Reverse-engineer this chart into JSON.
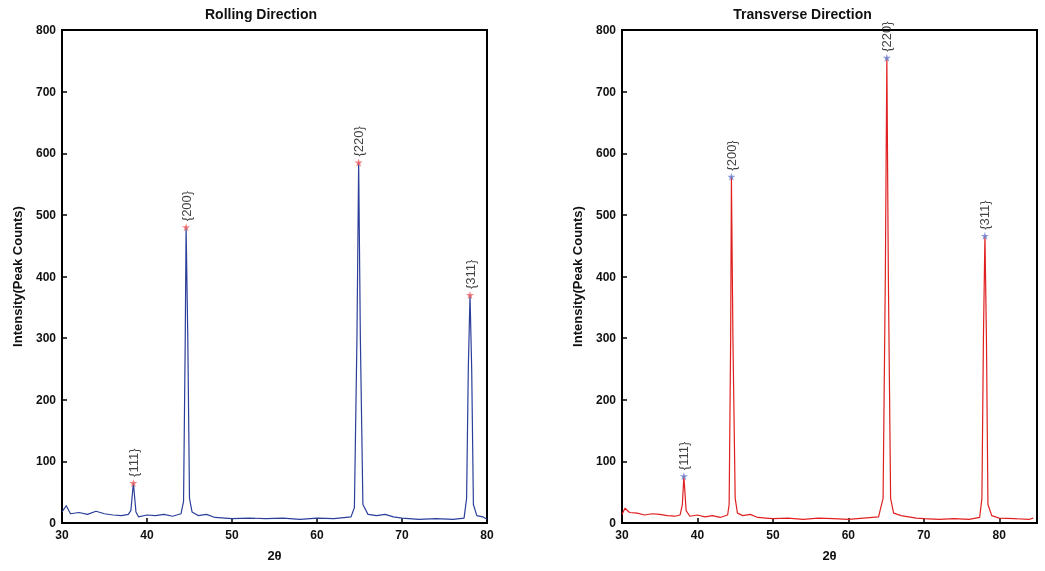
{
  "chart_data": [
    {
      "type": "line",
      "title": "Rolling Direction",
      "xlabel": "2θ",
      "ylabel": "Intensity(Peak Counts)",
      "xlim": [
        30,
        80
      ],
      "xticks": [
        30,
        40,
        50,
        60,
        70,
        80
      ],
      "ylim": [
        0,
        800
      ],
      "yticks": [
        0,
        100,
        200,
        300,
        400,
        500,
        600,
        700,
        800
      ],
      "grid": false,
      "series": [
        {
          "color": "#2b3f9a",
          "marker": "none",
          "x": [
            30,
            30.5,
            31,
            32,
            33,
            34,
            35,
            36,
            37,
            37.8,
            38.1,
            38.4,
            38.7,
            39,
            40,
            41,
            42,
            43,
            44,
            44.3,
            44.5,
            44.6,
            44.8,
            45,
            45.3,
            46,
            47,
            48,
            50,
            52,
            54,
            56,
            58,
            60,
            62,
            64,
            64.4,
            64.7,
            64.9,
            65.1,
            65.4,
            66,
            67,
            68,
            69,
            70,
            72,
            74,
            76,
            77.3,
            77.6,
            77.8,
            78,
            78.2,
            78.4,
            78.8,
            79.5,
            80
          ],
          "values": [
            18,
            28,
            15,
            17,
            14,
            19,
            15,
            13,
            12,
            14,
            20,
            65,
            18,
            10,
            13,
            12,
            14,
            11,
            15,
            35,
            300,
            480,
            300,
            40,
            18,
            12,
            14,
            9,
            7,
            8,
            7,
            8,
            6,
            8,
            7,
            10,
            25,
            300,
            585,
            300,
            30,
            14,
            12,
            14,
            10,
            8,
            6,
            7,
            6,
            8,
            40,
            250,
            370,
            250,
            30,
            12,
            10,
            6
          ]
        },
        {
          "type": "scatter",
          "color": "#f06060",
          "marker": "star",
          "x": [
            38.4,
            44.6,
            64.9,
            78
          ],
          "values": [
            65,
            480,
            585,
            370
          ]
        }
      ],
      "annotations": [
        {
          "text": "{111}",
          "x": 38.4,
          "y": 65
        },
        {
          "text": "{200}",
          "x": 44.6,
          "y": 480
        },
        {
          "text": "{220}",
          "x": 64.9,
          "y": 585
        },
        {
          "text": "{311}",
          "x": 78,
          "y": 370
        }
      ]
    },
    {
      "type": "line",
      "title": "Transverse Direction",
      "xlabel": "2θ",
      "ylabel": "Intensity(Peak Counts)",
      "xlim": [
        30,
        85
      ],
      "xticks": [
        30,
        40,
        50,
        60,
        70,
        80
      ],
      "ylim": [
        0,
        800
      ],
      "yticks": [
        0,
        100,
        200,
        300,
        400,
        500,
        600,
        700,
        800
      ],
      "grid": false,
      "series": [
        {
          "color": "#e02020",
          "marker": "none",
          "x": [
            30,
            30.4,
            31,
            32,
            33,
            34,
            35,
            36,
            37,
            37.7,
            38,
            38.2,
            38.5,
            39,
            40,
            41,
            42,
            43,
            44,
            44.2,
            44.4,
            44.5,
            44.7,
            45,
            45.3,
            46,
            47,
            48,
            50,
            52,
            54,
            56,
            58,
            60,
            62,
            64,
            64.6,
            64.9,
            65.1,
            65.3,
            65.6,
            66,
            67,
            68,
            69,
            70,
            72,
            74,
            76,
            77.4,
            77.7,
            77.9,
            78.1,
            78.3,
            78.5,
            79,
            80,
            82,
            84,
            84.5
          ],
          "values": [
            14,
            24,
            17,
            16,
            13,
            15,
            14,
            12,
            11,
            13,
            30,
            76,
            20,
            11,
            13,
            10,
            12,
            9,
            13,
            30,
            300,
            562,
            300,
            40,
            16,
            12,
            14,
            9,
            7,
            8,
            6,
            8,
            7,
            6,
            8,
            10,
            40,
            400,
            755,
            400,
            40,
            16,
            12,
            10,
            8,
            7,
            6,
            7,
            6,
            9,
            40,
            300,
            466,
            300,
            30,
            12,
            8,
            7,
            6,
            8
          ]
        },
        {
          "type": "scatter",
          "color": "#6a7fd0",
          "marker": "star",
          "x": [
            38.2,
            44.5,
            65.1,
            78.1
          ],
          "values": [
            76,
            562,
            755,
            466
          ]
        }
      ],
      "annotations": [
        {
          "text": "{111}",
          "x": 38.2,
          "y": 76
        },
        {
          "text": "{200}",
          "x": 44.5,
          "y": 562
        },
        {
          "text": "{220}",
          "x": 65.1,
          "y": 755
        },
        {
          "text": "{311}",
          "x": 78.1,
          "y": 466
        }
      ]
    }
  ]
}
